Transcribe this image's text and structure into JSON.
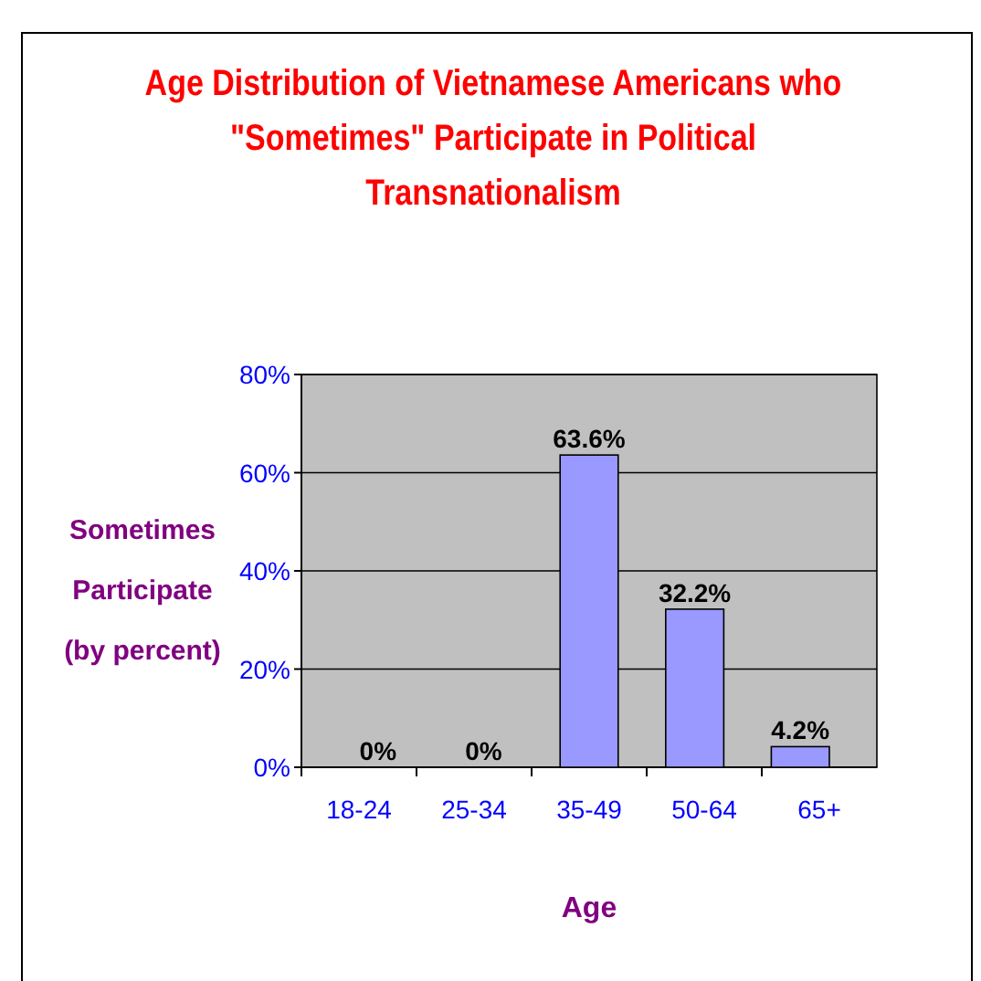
{
  "chart_data": {
    "type": "bar",
    "title": "Age Distribution of Vietnamese Americans who \"Sometimes\" Participate in Political Transnationalism",
    "xlabel": "Age",
    "ylabel": "Sometimes Participate (by percent)",
    "categories": [
      "18-24",
      "25-34",
      "35-49",
      "50-64",
      "65+"
    ],
    "values": [
      0,
      0,
      63.6,
      32.2,
      4.2
    ],
    "value_labels": [
      "0%",
      "0%",
      "63.6%",
      "32.2%",
      "4.2%"
    ],
    "color": "#9999ff",
    "ylim": [
      0,
      80
    ],
    "yticks": [
      {
        "value": 0,
        "label": "0%"
      },
      {
        "value": 20,
        "label": "20%"
      },
      {
        "value": 40,
        "label": "40%"
      },
      {
        "value": 60,
        "label": "60%"
      },
      {
        "value": 80,
        "label": "80%"
      }
    ],
    "grid": "y"
  }
}
